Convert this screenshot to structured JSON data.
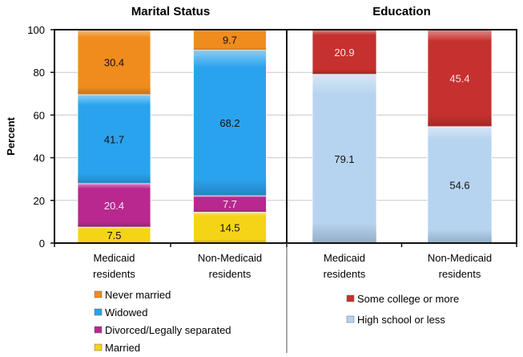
{
  "chart_data": [
    {
      "type": "bar",
      "stacked": true,
      "title": "Marital Status",
      "xlabel": "",
      "ylabel": "Percent",
      "ylim": [
        0,
        100
      ],
      "yticks": [
        0,
        20,
        40,
        60,
        80,
        100
      ],
      "grid": true,
      "categories": [
        "Medicaid residents",
        "Non-Medicaid residents"
      ],
      "category_lines": [
        [
          "Medicaid",
          "residents"
        ],
        [
          "Non-Medicaid",
          "residents"
        ]
      ],
      "legend_position": "bottom",
      "series": [
        {
          "name": "Married",
          "values": [
            7.5,
            14.5
          ],
          "color": "#f5d418",
          "label_color": "#111111"
        },
        {
          "name": "Divorced/Legally separated",
          "values": [
            20.4,
            7.7
          ],
          "color": "#b8288e",
          "label_color": "#f4e6f0"
        },
        {
          "name": "Widowed",
          "values": [
            41.7,
            68.2
          ],
          "color": "#2aa3ee",
          "label_color": "#111111"
        },
        {
          "name": "Never married",
          "values": [
            30.4,
            9.7
          ],
          "color": "#f08c1e",
          "label_color": "#111111"
        }
      ],
      "legend_order": [
        "Never married",
        "Widowed",
        "Divorced/Legally separated",
        "Married"
      ]
    },
    {
      "type": "bar",
      "stacked": true,
      "title": "Education",
      "xlabel": "",
      "ylabel": "",
      "ylim": [
        0,
        100
      ],
      "grid": true,
      "categories": [
        "Medicaid residents",
        "Non-Medicaid residents"
      ],
      "category_lines": [
        [
          "Medicaid",
          "residents"
        ],
        [
          "Non-Medicaid",
          "residents"
        ]
      ],
      "legend_position": "bottom",
      "series": [
        {
          "name": "High school or less",
          "values": [
            79.1,
            54.6
          ],
          "color": "#b6d3f0",
          "label_color": "#111111"
        },
        {
          "name": "Some college or more",
          "values": [
            20.9,
            45.4
          ],
          "color": "#c6302e",
          "label_color": "#f7e6e4"
        }
      ],
      "legend_order": [
        "Some college or more",
        "High school or less"
      ]
    }
  ]
}
